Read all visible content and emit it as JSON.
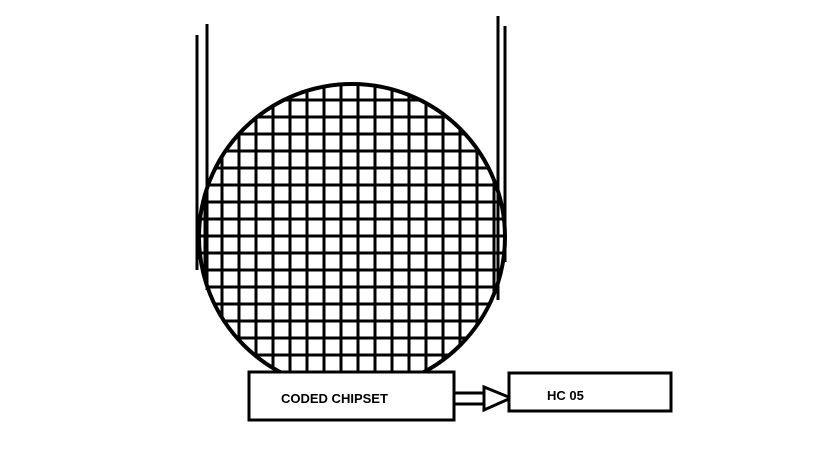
{
  "diagram": {
    "boxes": {
      "chipset": {
        "label": "CODED CHIPSET"
      },
      "module": {
        "label": "HC 05"
      }
    },
    "colors": {
      "stroke": "#000000",
      "background": "#ffffff"
    }
  }
}
